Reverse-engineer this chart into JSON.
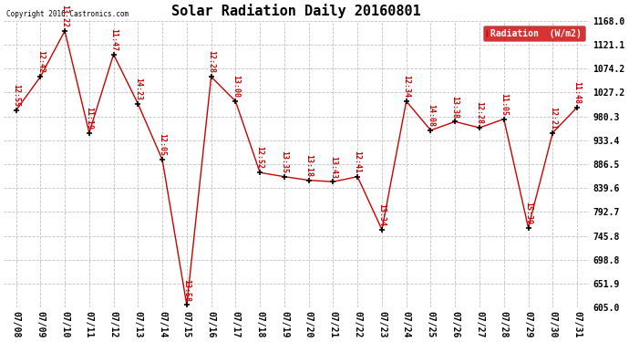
{
  "title": "Solar Radiation Daily 20160801",
  "copyright": "Copyright 2016 Castronics.com",
  "legend_label": "Radiation  (W/m2)",
  "ylim": [
    605.0,
    1168.0
  ],
  "yticks": [
    605.0,
    651.9,
    698.8,
    745.8,
    792.7,
    839.6,
    886.5,
    933.4,
    980.3,
    1027.2,
    1074.2,
    1121.1,
    1168.0
  ],
  "dates": [
    "07/08",
    "07/09",
    "07/10",
    "07/11",
    "07/12",
    "07/13",
    "07/14",
    "07/15",
    "07/16",
    "07/17",
    "07/18",
    "07/19",
    "07/20",
    "07/21",
    "07/22",
    "07/23",
    "07/24",
    "07/25",
    "07/26",
    "07/27",
    "07/28",
    "07/29",
    "07/30",
    "07/31"
  ],
  "values": [
    992,
    1058,
    1148,
    948,
    1102,
    1005,
    895,
    610,
    1058,
    1010,
    870,
    862,
    855,
    852,
    862,
    758,
    1010,
    953,
    970,
    958,
    975,
    762,
    948,
    998
  ],
  "labels": [
    "12:55",
    "12:42",
    "13:22",
    "11:19",
    "11:47",
    "14:23",
    "12:05",
    "13:58",
    "12:28",
    "13:00",
    "12:52",
    "13:35",
    "13:18",
    "13:43",
    "12:41",
    "13:34",
    "12:34",
    "14:08",
    "13:38",
    "12:28",
    "11:05",
    "15:39",
    "12:21",
    "11:48"
  ],
  "line_color": "#cc0000",
  "marker_color": "#000000",
  "label_color": "#cc0000",
  "bg_color": "#ffffff",
  "grid_color": "#c0c0c0",
  "legend_bg": "#cc0000",
  "legend_text_color": "#ffffff",
  "title_fontsize": 11,
  "tick_fontsize": 7,
  "label_fontsize": 6,
  "figwidth": 6.9,
  "figheight": 3.75,
  "dpi": 100
}
